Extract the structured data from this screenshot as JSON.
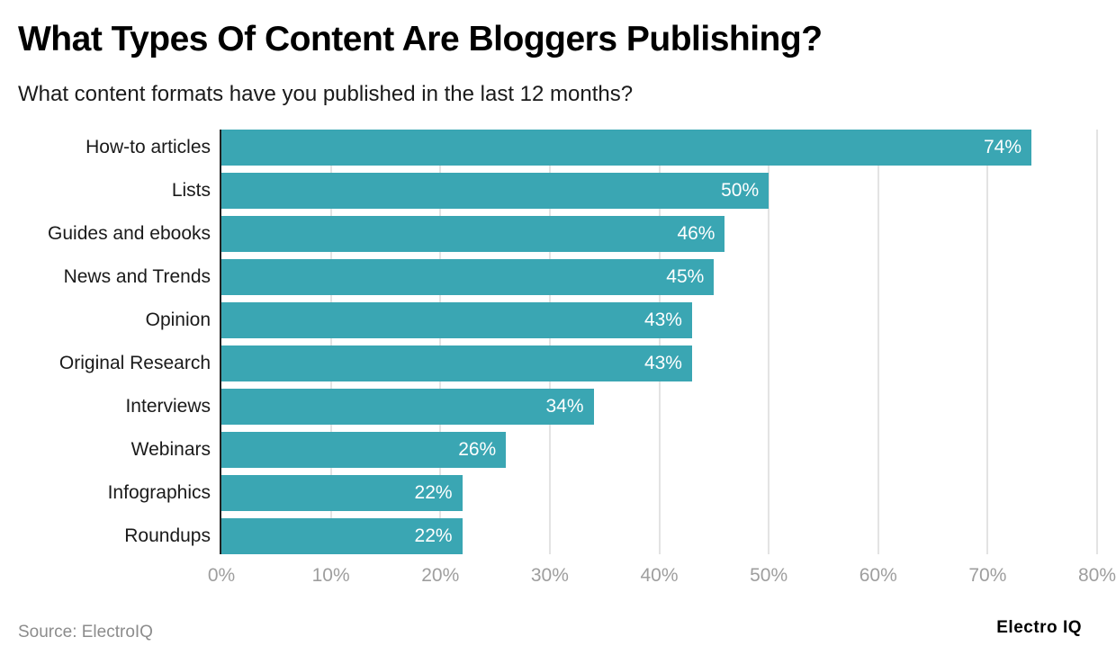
{
  "header": {
    "title": "What Types Of Content Are Bloggers Publishing?",
    "subtitle": "What content formats have you published in the last 12 months?"
  },
  "footer": {
    "source": "Source: ElectroIQ",
    "brand": "Electro IQ"
  },
  "colors": {
    "bar": "#3aa6b3",
    "grid": "#e3e3e3",
    "axis": "#222222",
    "tick_label": "#9e9e9e"
  },
  "chart_data": {
    "type": "bar",
    "orientation": "horizontal",
    "title": "What Types Of Content Are Bloggers Publishing?",
    "subtitle": "What content formats have you published in the last 12 months?",
    "categories": [
      "How-to articles",
      "Lists",
      "Guides and ebooks",
      "News and Trends",
      "Opinion",
      "Original Research",
      "Interviews",
      "Webinars",
      "Infographics",
      "Roundups"
    ],
    "values": [
      74,
      50,
      46,
      45,
      43,
      43,
      34,
      26,
      22,
      22
    ],
    "value_labels": [
      "74%",
      "50%",
      "46%",
      "45%",
      "43%",
      "43%",
      "34%",
      "26%",
      "22%",
      "22%"
    ],
    "xlabel": "",
    "ylabel": "",
    "xlim": [
      0,
      80
    ],
    "x_ticks": [
      "0%",
      "10%",
      "20%",
      "30%",
      "40%",
      "50%",
      "60%",
      "70%",
      "80%"
    ],
    "grid": true,
    "legend": null,
    "source": "Source: ElectroIQ"
  }
}
